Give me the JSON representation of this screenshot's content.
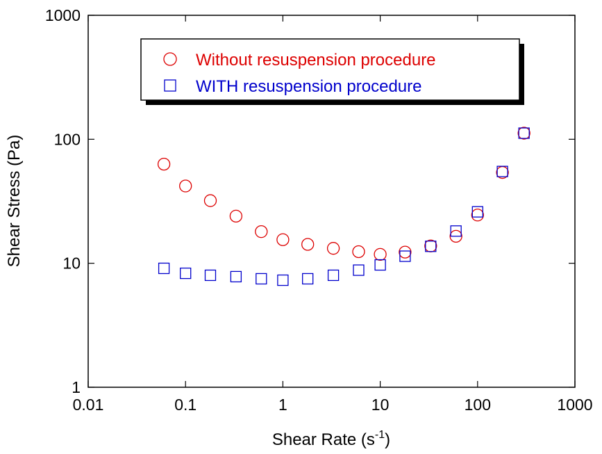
{
  "chart_data": {
    "type": "scatter",
    "title": "",
    "xlabel": "Shear Rate (s",
    "xlabel_sup": "-1",
    "xlabel_close": ")",
    "ylabel": "Shear Stress (Pa)",
    "x_scale": "log",
    "y_scale": "log",
    "xlim": [
      0.01,
      1000
    ],
    "ylim": [
      1,
      1000
    ],
    "x_ticks": [
      {
        "value": 0.01,
        "label": "0.01"
      },
      {
        "value": 0.1,
        "label": "0.1"
      },
      {
        "value": 1,
        "label": "1"
      },
      {
        "value": 10,
        "label": "10"
      },
      {
        "value": 100,
        "label": "100"
      },
      {
        "value": 1000,
        "label": "1000"
      }
    ],
    "y_ticks": [
      {
        "value": 1,
        "label": "1"
      },
      {
        "value": 10,
        "label": "10"
      },
      {
        "value": 100,
        "label": "100"
      },
      {
        "value": 1000,
        "label": "1000"
      }
    ],
    "grid": false,
    "legend_position": "top-center",
    "series": [
      {
        "name": "Without resuspension procedure",
        "marker": "circle",
        "color": "#dd0000",
        "points": [
          [
            0.06,
            63
          ],
          [
            0.1,
            42
          ],
          [
            0.18,
            32
          ],
          [
            0.33,
            24
          ],
          [
            0.6,
            18
          ],
          [
            1.0,
            15.5
          ],
          [
            1.8,
            14.2
          ],
          [
            3.3,
            13.2
          ],
          [
            6.0,
            12.4
          ],
          [
            10,
            11.8
          ],
          [
            18,
            12.3
          ],
          [
            33,
            13.8
          ],
          [
            60,
            16.5
          ],
          [
            100,
            24.5
          ],
          [
            180,
            54
          ],
          [
            300,
            112
          ]
        ]
      },
      {
        "name": "WITH resuspension procedure",
        "marker": "square",
        "color": "#0000cc",
        "points": [
          [
            0.06,
            9.1
          ],
          [
            0.1,
            8.3
          ],
          [
            0.18,
            8.0
          ],
          [
            0.33,
            7.8
          ],
          [
            0.6,
            7.5
          ],
          [
            1.0,
            7.3
          ],
          [
            1.8,
            7.5
          ],
          [
            3.3,
            8.0
          ],
          [
            6.0,
            8.8
          ],
          [
            10,
            9.7
          ],
          [
            18,
            11.4
          ],
          [
            33,
            13.7
          ],
          [
            60,
            18.2
          ],
          [
            100,
            26
          ],
          [
            180,
            55
          ],
          [
            300,
            112
          ]
        ]
      }
    ]
  }
}
